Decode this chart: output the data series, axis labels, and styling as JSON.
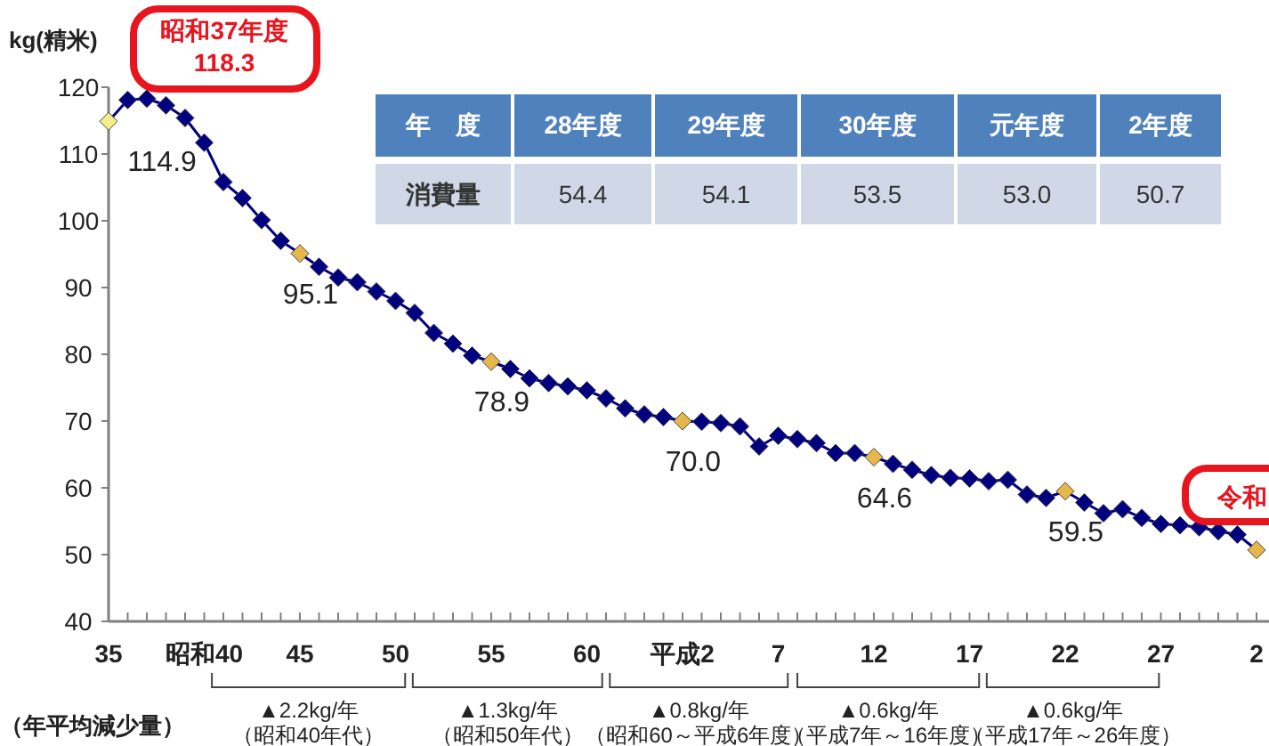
{
  "chart_data": [
    {
      "type": "line",
      "ylabel": "kg(精米)",
      "categories": [
        "35",
        null,
        null,
        null,
        null,
        "昭和40",
        null,
        null,
        null,
        null,
        "45",
        null,
        null,
        null,
        null,
        "50",
        null,
        null,
        null,
        null,
        "55",
        null,
        null,
        null,
        null,
        "60",
        null,
        null,
        null,
        null,
        "平成2",
        null,
        null,
        null,
        null,
        "7",
        null,
        null,
        null,
        null,
        "12",
        null,
        null,
        null,
        null,
        "17",
        null,
        null,
        null,
        null,
        "22",
        null,
        null,
        null,
        null,
        "27",
        null,
        null,
        null,
        null,
        "2"
      ],
      "series": [
        {
          "color": "#000080",
          "colors": [
            "#f2ee8a",
            "#000080",
            "#000080",
            "#000080",
            "#000080",
            "#000080",
            "#000080",
            "#000080",
            "#000080",
            "#000080",
            "#e6b84c",
            "#000080",
            "#000080",
            "#000080",
            "#000080",
            "#000080",
            "#000080",
            "#000080",
            "#000080",
            "#000080",
            "#e6b84c",
            "#000080",
            "#000080",
            "#000080",
            "#000080",
            "#000080",
            "#000080",
            "#000080",
            "#000080",
            "#000080",
            "#e6b84c",
            "#000080",
            "#000080",
            "#000080",
            "#000080",
            "#000080",
            "#000080",
            "#000080",
            "#000080",
            "#000080",
            "#e6b84c",
            "#000080",
            "#000080",
            "#000080",
            "#000080",
            "#000080",
            "#000080",
            "#000080",
            "#000080",
            "#000080",
            "#e6b84c",
            "#000080",
            "#000080",
            "#000080",
            "#000080",
            "#000080",
            "#000080",
            "#000080",
            "#000080",
            "#000080",
            "#e6b84c"
          ],
          "values": [
            114.9,
            118.1,
            118.3,
            117.3,
            115.4,
            111.7,
            105.8,
            103.4,
            100.1,
            97.0,
            95.1,
            93.1,
            91.5,
            90.8,
            89.4,
            88.0,
            86.2,
            83.2,
            81.6,
            79.8,
            78.9,
            77.8,
            76.4,
            75.7,
            75.2,
            74.6,
            73.4,
            71.9,
            71.0,
            70.6,
            70.0,
            69.9,
            69.7,
            69.2,
            66.2,
            67.8,
            67.3,
            66.7,
            65.2,
            65.2,
            64.6,
            63.6,
            62.7,
            61.9,
            61.5,
            61.4,
            61.0,
            61.2,
            59.0,
            58.5,
            59.5,
            57.8,
            56.2,
            56.8,
            55.5,
            54.6,
            54.4,
            54.1,
            53.5,
            53.0,
            50.7
          ],
          "value_labels": [
            "114.9",
            null,
            null,
            null,
            null,
            null,
            null,
            null,
            null,
            null,
            "95.1",
            null,
            null,
            null,
            null,
            null,
            null,
            null,
            null,
            null,
            "78.9",
            null,
            null,
            null,
            null,
            null,
            null,
            null,
            null,
            null,
            "70.0",
            null,
            null,
            null,
            null,
            null,
            null,
            null,
            null,
            null,
            "64.6",
            null,
            null,
            null,
            null,
            null,
            null,
            null,
            null,
            null,
            "59.5",
            null,
            null,
            null,
            null,
            null,
            null,
            null,
            null,
            null,
            null
          ]
        }
      ],
      "ylim": [
        40,
        120
      ],
      "yticks": [
        40,
        50,
        60,
        70,
        80,
        90,
        100,
        110,
        120
      ],
      "marker": "diamond",
      "grid": false,
      "annotations": [
        "昭和37年度\n118.3",
        "令和",
        "（年平均減少量）",
        "▲2.2kg/年（昭和40年代）",
        "▲1.3kg/年（昭和50年代）",
        "▲0.8kg/年（昭和60～平成6年度）",
        "▲0.6kg/年（平成7年～16年度）",
        "▲0.6kg/年（平成17年～26年度）"
      ]
    },
    {
      "type": "other",
      "xlabel": "年　度",
      "ylabel": "消費量",
      "categories": [
        "28年度",
        "29年度",
        "30年度",
        "元年度",
        "2年度"
      ],
      "values": [
        54.4,
        54.1,
        53.5,
        53.0,
        50.7
      ],
      "value_labels": [
        "54.4",
        "54.1",
        "53.5",
        "53.0",
        "50.7"
      ]
    }
  ]
}
